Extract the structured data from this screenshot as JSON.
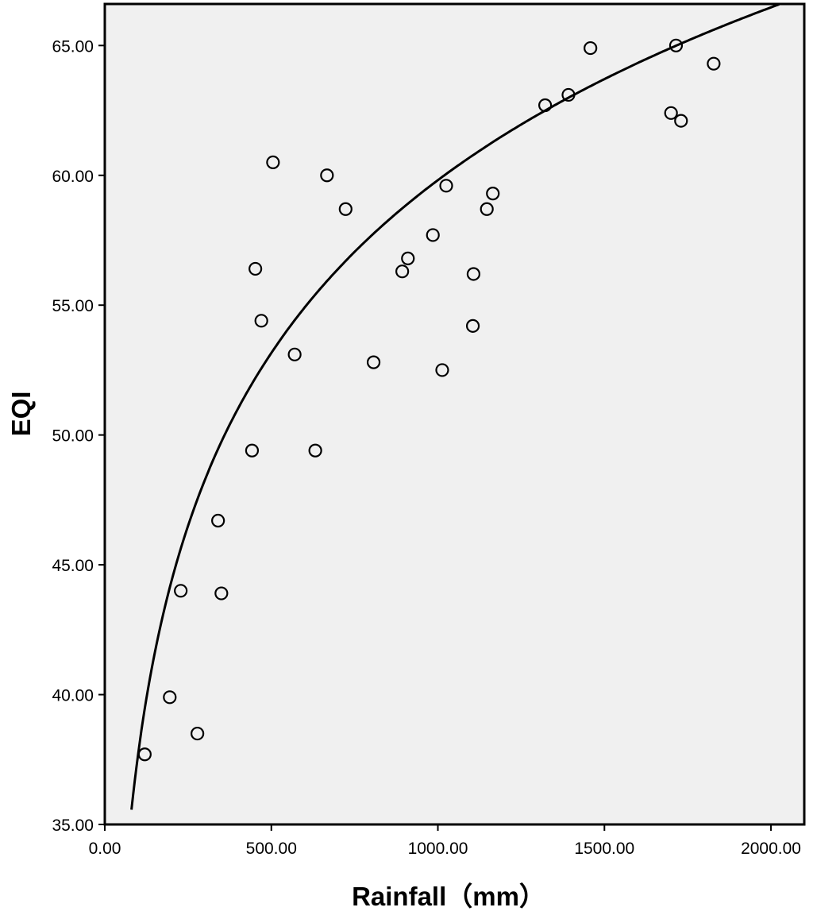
{
  "chart_data": {
    "type": "scatter",
    "title": "",
    "xlabel": "Rainfall（mm）",
    "ylabel": "EQI",
    "xlim": [
      0,
      2100
    ],
    "ylim": [
      35,
      66.6
    ],
    "x_ticks": [
      {
        "value": 0,
        "label": "0.00"
      },
      {
        "value": 500,
        "label": "500.00"
      },
      {
        "value": 1000,
        "label": "1000.00"
      },
      {
        "value": 1500,
        "label": "1500.00"
      },
      {
        "value": 2000,
        "label": "2000.00"
      }
    ],
    "y_ticks": [
      {
        "value": 35,
        "label": "35.00"
      },
      {
        "value": 40,
        "label": "40.00"
      },
      {
        "value": 45,
        "label": "45.00"
      },
      {
        "value": 50,
        "label": "50.00"
      },
      {
        "value": 55,
        "label": "55.00"
      },
      {
        "value": 60,
        "label": "60.00"
      },
      {
        "value": 65,
        "label": "65.00"
      }
    ],
    "grid": false,
    "legend": "none",
    "background_color": "#f0f0f0",
    "marker": "open-circle",
    "points": [
      {
        "x": 120,
        "y": 37.7
      },
      {
        "x": 195,
        "y": 39.9
      },
      {
        "x": 228,
        "y": 44.0
      },
      {
        "x": 278,
        "y": 38.5
      },
      {
        "x": 340,
        "y": 46.7
      },
      {
        "x": 350,
        "y": 43.9
      },
      {
        "x": 442,
        "y": 49.4
      },
      {
        "x": 452,
        "y": 56.4
      },
      {
        "x": 470,
        "y": 54.4
      },
      {
        "x": 505,
        "y": 60.5
      },
      {
        "x": 570,
        "y": 53.1
      },
      {
        "x": 632,
        "y": 49.4
      },
      {
        "x": 667,
        "y": 60.0
      },
      {
        "x": 723,
        "y": 58.7
      },
      {
        "x": 807,
        "y": 52.8
      },
      {
        "x": 893,
        "y": 56.3
      },
      {
        "x": 910,
        "y": 56.8
      },
      {
        "x": 985,
        "y": 57.7
      },
      {
        "x": 1013,
        "y": 52.5
      },
      {
        "x": 1025,
        "y": 59.6
      },
      {
        "x": 1105,
        "y": 54.2
      },
      {
        "x": 1107,
        "y": 56.2
      },
      {
        "x": 1147,
        "y": 58.7
      },
      {
        "x": 1165,
        "y": 59.3
      },
      {
        "x": 1322,
        "y": 62.7
      },
      {
        "x": 1392,
        "y": 63.1
      },
      {
        "x": 1458,
        "y": 64.9
      },
      {
        "x": 1700,
        "y": 62.4
      },
      {
        "x": 1715,
        "y": 65.0
      },
      {
        "x": 1730,
        "y": 62.1
      },
      {
        "x": 1828,
        "y": 64.3
      }
    ],
    "fit_line": {
      "type": "logarithmic",
      "intercept": -6.5,
      "slope": 9.6
    }
  }
}
